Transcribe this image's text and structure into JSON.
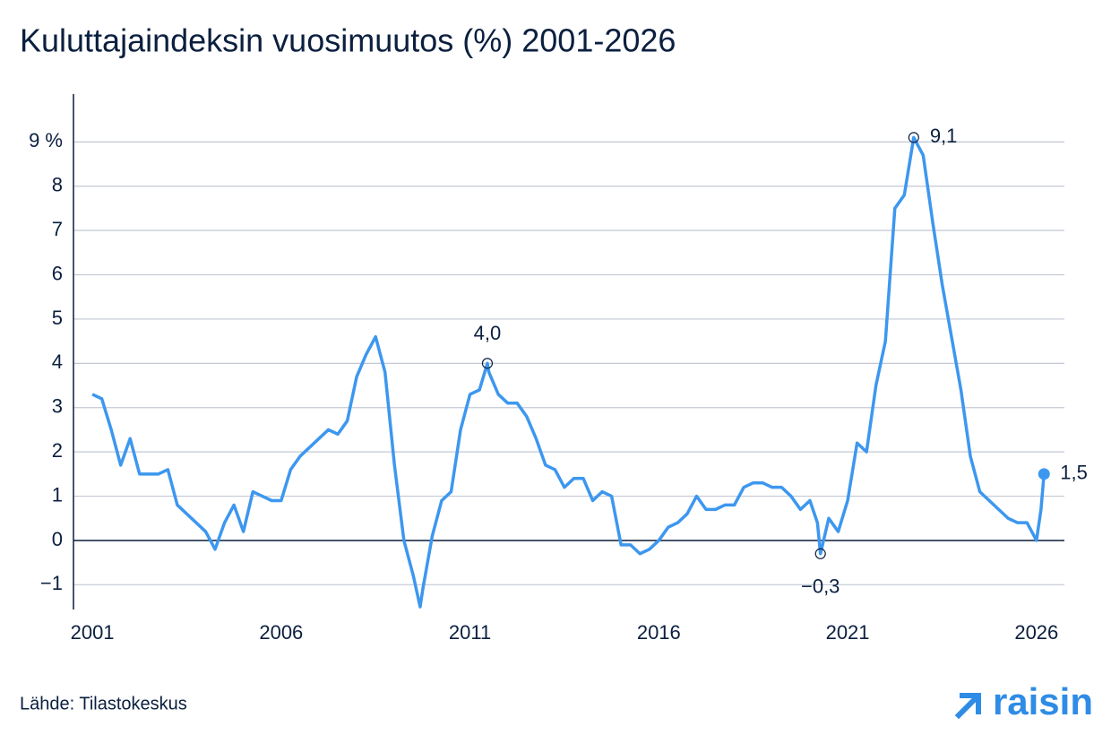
{
  "chart_data": {
    "type": "line",
    "title": "Kuluttajaindeksin vuosimuutos (%) 2001-2026",
    "source": "Lähde: Tilastokeskus",
    "logo": "raisin",
    "xlim": [
      2000.5,
      2026.74
    ],
    "xticks": [
      2001,
      2006,
      2011,
      2016,
      2021,
      2026
    ],
    "ylim": [
      -1.56,
      10.08
    ],
    "yticks": [
      {
        "value": -1,
        "label": "−1"
      },
      0,
      1,
      2,
      3,
      4,
      5,
      6,
      7,
      8,
      {
        "value": 9,
        "label": "9 %"
      }
    ],
    "grid": true,
    "x": [
      2001,
      2001.25,
      2001.5,
      2001.75,
      2002,
      2002.25,
      2002.5,
      2002.75,
      2003,
      2003.25,
      2003.5,
      2003.75,
      2004,
      2004.25,
      2004.5,
      2004.75,
      2005,
      2005.25,
      2005.5,
      2005.75,
      2006,
      2006.25,
      2006.5,
      2006.75,
      2007,
      2007.25,
      2007.5,
      2007.75,
      2008,
      2008.25,
      2008.5,
      2008.75,
      2009,
      2009.25,
      2009.5,
      2009.68,
      2009.75,
      2010,
      2010.25,
      2010.5,
      2010.75,
      2011,
      2011.25,
      2011.46,
      2011.5,
      2011.75,
      2012,
      2012.25,
      2012.5,
      2012.75,
      2013,
      2013.25,
      2013.5,
      2013.75,
      2014,
      2014.25,
      2014.5,
      2014.75,
      2015,
      2015.25,
      2015.5,
      2015.75,
      2016,
      2016.25,
      2016.5,
      2016.75,
      2017,
      2017.25,
      2017.5,
      2017.75,
      2018,
      2018.25,
      2018.5,
      2018.75,
      2019,
      2019.25,
      2019.5,
      2019.75,
      2020,
      2020.2,
      2020.28,
      2020.5,
      2020.75,
      2021,
      2021.25,
      2021.5,
      2021.75,
      2022,
      2022.25,
      2022.5,
      2022.75,
      2023,
      2023.25,
      2023.5,
      2023.75,
      2024,
      2024.25,
      2024.5,
      2024.75,
      2025,
      2025.25,
      2025.5,
      2025.75,
      2026,
      2026.12,
      2026.2
    ],
    "series": [
      {
        "color": "#3d97ef",
        "values": [
          3.3,
          3.2,
          2.5,
          1.7,
          2.3,
          1.5,
          1.5,
          1.5,
          1.6,
          0.8,
          0.6,
          0.4,
          0.2,
          -0.2,
          0.4,
          0.8,
          0.2,
          1.1,
          1.0,
          0.9,
          0.9,
          1.6,
          1.9,
          2.1,
          2.3,
          2.5,
          2.4,
          2.7,
          3.7,
          4.2,
          4.6,
          3.8,
          1.7,
          0.0,
          -0.8,
          -1.5,
          -1.1,
          0.1,
          0.9,
          1.1,
          2.5,
          3.3,
          3.4,
          4.0,
          3.8,
          3.3,
          3.1,
          3.1,
          2.8,
          2.3,
          1.7,
          1.6,
          1.2,
          1.4,
          1.4,
          0.9,
          1.1,
          1.0,
          -0.1,
          -0.1,
          -0.3,
          -0.2,
          0.0,
          0.3,
          0.4,
          0.6,
          1.0,
          0.7,
          0.7,
          0.8,
          0.8,
          1.2,
          1.3,
          1.3,
          1.2,
          1.2,
          1.0,
          0.7,
          0.9,
          0.4,
          -0.3,
          0.5,
          0.2,
          0.9,
          2.2,
          2.0,
          3.5,
          4.5,
          7.5,
          7.8,
          9.1,
          8.7,
          7.2,
          5.8,
          4.6,
          3.4,
          1.9,
          1.1,
          0.9,
          0.7,
          0.5,
          0.4,
          0.4,
          0.0,
          0.7,
          1.5
        ]
      }
    ],
    "annotations": [
      {
        "x": 2011.46,
        "y": 4.0,
        "label": "4,0",
        "position": "above",
        "marker": "open"
      },
      {
        "x": 2022.75,
        "y": 9.1,
        "label": "9,1",
        "position": "right",
        "marker": "open"
      },
      {
        "x": 2020.28,
        "y": -0.3,
        "label": "−0,3",
        "position": "below",
        "marker": "open"
      },
      {
        "x": 2026.2,
        "y": 1.5,
        "label": "1,5",
        "position": "right",
        "marker": "filled"
      }
    ]
  }
}
